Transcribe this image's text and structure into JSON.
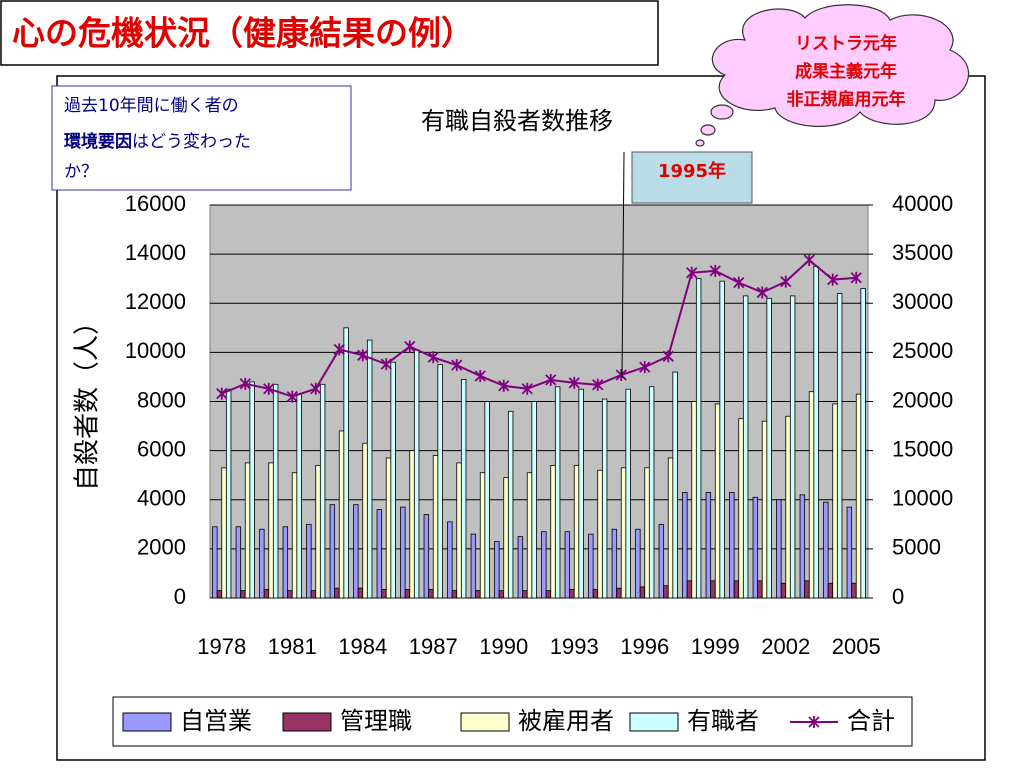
{
  "header": {
    "title": "心の危機状況（健康結果の例）"
  },
  "note": {
    "parts": [
      "過去10年間に働く者の",
      "環境要因",
      "はどう変わったか？"
    ]
  },
  "cloud": {
    "lines": [
      "リストラ元年",
      "成果主義元年",
      "非正規雇用元年"
    ]
  },
  "callout": {
    "label": "1995年"
  },
  "chart_data": {
    "type": "bar",
    "title": "有職自殺者数推移",
    "ylabel": "自殺者数（人）",
    "categories": [
      "1978",
      null,
      null,
      "1981",
      null,
      null,
      "1984",
      null,
      null,
      "1987",
      null,
      null,
      "1990",
      null,
      null,
      "1993",
      null,
      null,
      "1996",
      null,
      null,
      "1999",
      null,
      null,
      "2002",
      null,
      null,
      "2005"
    ],
    "ylim": [
      0,
      16000
    ],
    "yticks": [
      0,
      2000,
      4000,
      6000,
      8000,
      10000,
      12000,
      14000,
      16000
    ],
    "y2lim": [
      0,
      40000
    ],
    "y2ticks": [
      0,
      5000,
      10000,
      15000,
      20000,
      25000,
      30000,
      35000,
      40000
    ],
    "grid": true,
    "legend": "bottom",
    "series": [
      {
        "name": "自営業",
        "color": "#9999ff",
        "values": [
          2900,
          2900,
          2800,
          2900,
          3000,
          3800,
          3800,
          3600,
          3700,
          3400,
          3100,
          2600,
          2300,
          2500,
          2700,
          2700,
          2600,
          2800,
          2800,
          3000,
          4300,
          4300,
          4300,
          4100,
          4000,
          4200,
          3900,
          3700
        ]
      },
      {
        "name": "管理職",
        "color": "#993366",
        "values": [
          300,
          300,
          350,
          300,
          300,
          400,
          400,
          350,
          350,
          350,
          300,
          300,
          300,
          300,
          300,
          350,
          350,
          400,
          450,
          500,
          700,
          700,
          700,
          700,
          600,
          700,
          600,
          600
        ]
      },
      {
        "name": "被雇用者",
        "color": "#ffffcc",
        "values": [
          5300,
          5500,
          5500,
          5100,
          5400,
          6800,
          6300,
          5700,
          6000,
          5800,
          5500,
          5100,
          4900,
          5100,
          5400,
          5400,
          5200,
          5300,
          5300,
          5700,
          8000,
          7900,
          7300,
          7200,
          7400,
          8400,
          7900,
          8300
        ]
      },
      {
        "name": "有職者",
        "color": "#ccffff",
        "values": [
          8500,
          8800,
          8700,
          8300,
          8700,
          11000,
          10500,
          9600,
          10100,
          9500,
          8900,
          8000,
          7600,
          8000,
          8600,
          8500,
          8100,
          8500,
          8600,
          9200,
          13000,
          12900,
          12300,
          12200,
          12300,
          13500,
          12400,
          12600
        ]
      },
      {
        "name": "合計",
        "color": "#800080",
        "type": "line",
        "axis": "y2",
        "values": [
          20800,
          21800,
          21300,
          20500,
          21300,
          25300,
          24700,
          23800,
          25600,
          24500,
          23700,
          22600,
          21600,
          21300,
          22200,
          21900,
          21700,
          22700,
          23500,
          24600,
          33100,
          33300,
          32100,
          31100,
          32200,
          34400,
          32400,
          32600
        ]
      }
    ]
  }
}
